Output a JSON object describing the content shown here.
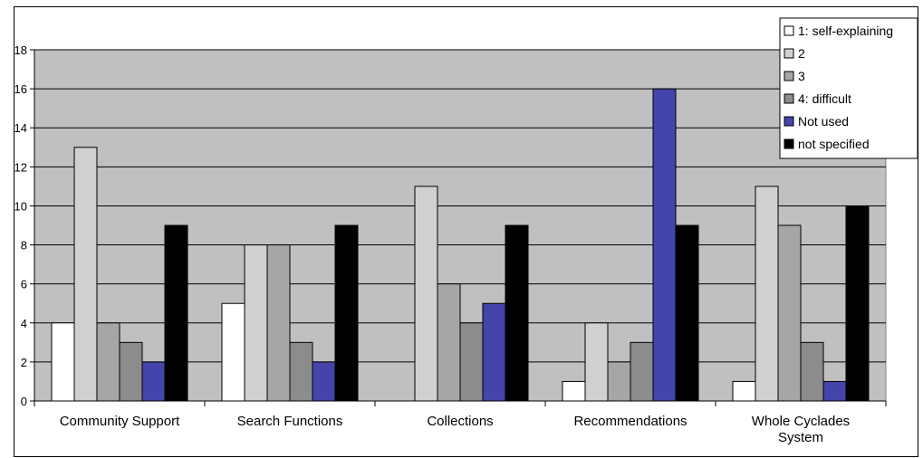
{
  "chart_data": {
    "type": "bar",
    "categories": [
      [
        "Community Support"
      ],
      [
        "Search Functions"
      ],
      [
        "Collections"
      ],
      [
        "Recommendations"
      ],
      [
        "Whole Cyclades",
        "System"
      ]
    ],
    "series": [
      {
        "name": "1: self-explaining",
        "color": "#ffffff",
        "values": [
          4,
          5,
          0,
          1,
          1
        ]
      },
      {
        "name": "2",
        "color": "#d0d0d0",
        "values": [
          13,
          8,
          11,
          4,
          11
        ]
      },
      {
        "name": "3",
        "color": "#a6a6a6",
        "values": [
          4,
          8,
          6,
          2,
          9
        ]
      },
      {
        "name": "4: difficult",
        "color": "#8c8c8c",
        "values": [
          3,
          3,
          4,
          3,
          3
        ]
      },
      {
        "name": "Not used",
        "color": "#4444aa",
        "values": [
          2,
          2,
          5,
          16,
          1
        ]
      },
      {
        "name": "not specified",
        "color": "#000000",
        "values": [
          9,
          9,
          9,
          9,
          10
        ]
      }
    ],
    "ylim": [
      0,
      18
    ],
    "yticks": [
      "0",
      "2",
      "4",
      "6",
      "8",
      "10",
      "12",
      "14",
      "16",
      "18"
    ],
    "grid": true,
    "plot_background": "#c0c0c0",
    "legend_position": "top-right",
    "title": "",
    "xlabel": "",
    "ylabel": ""
  }
}
